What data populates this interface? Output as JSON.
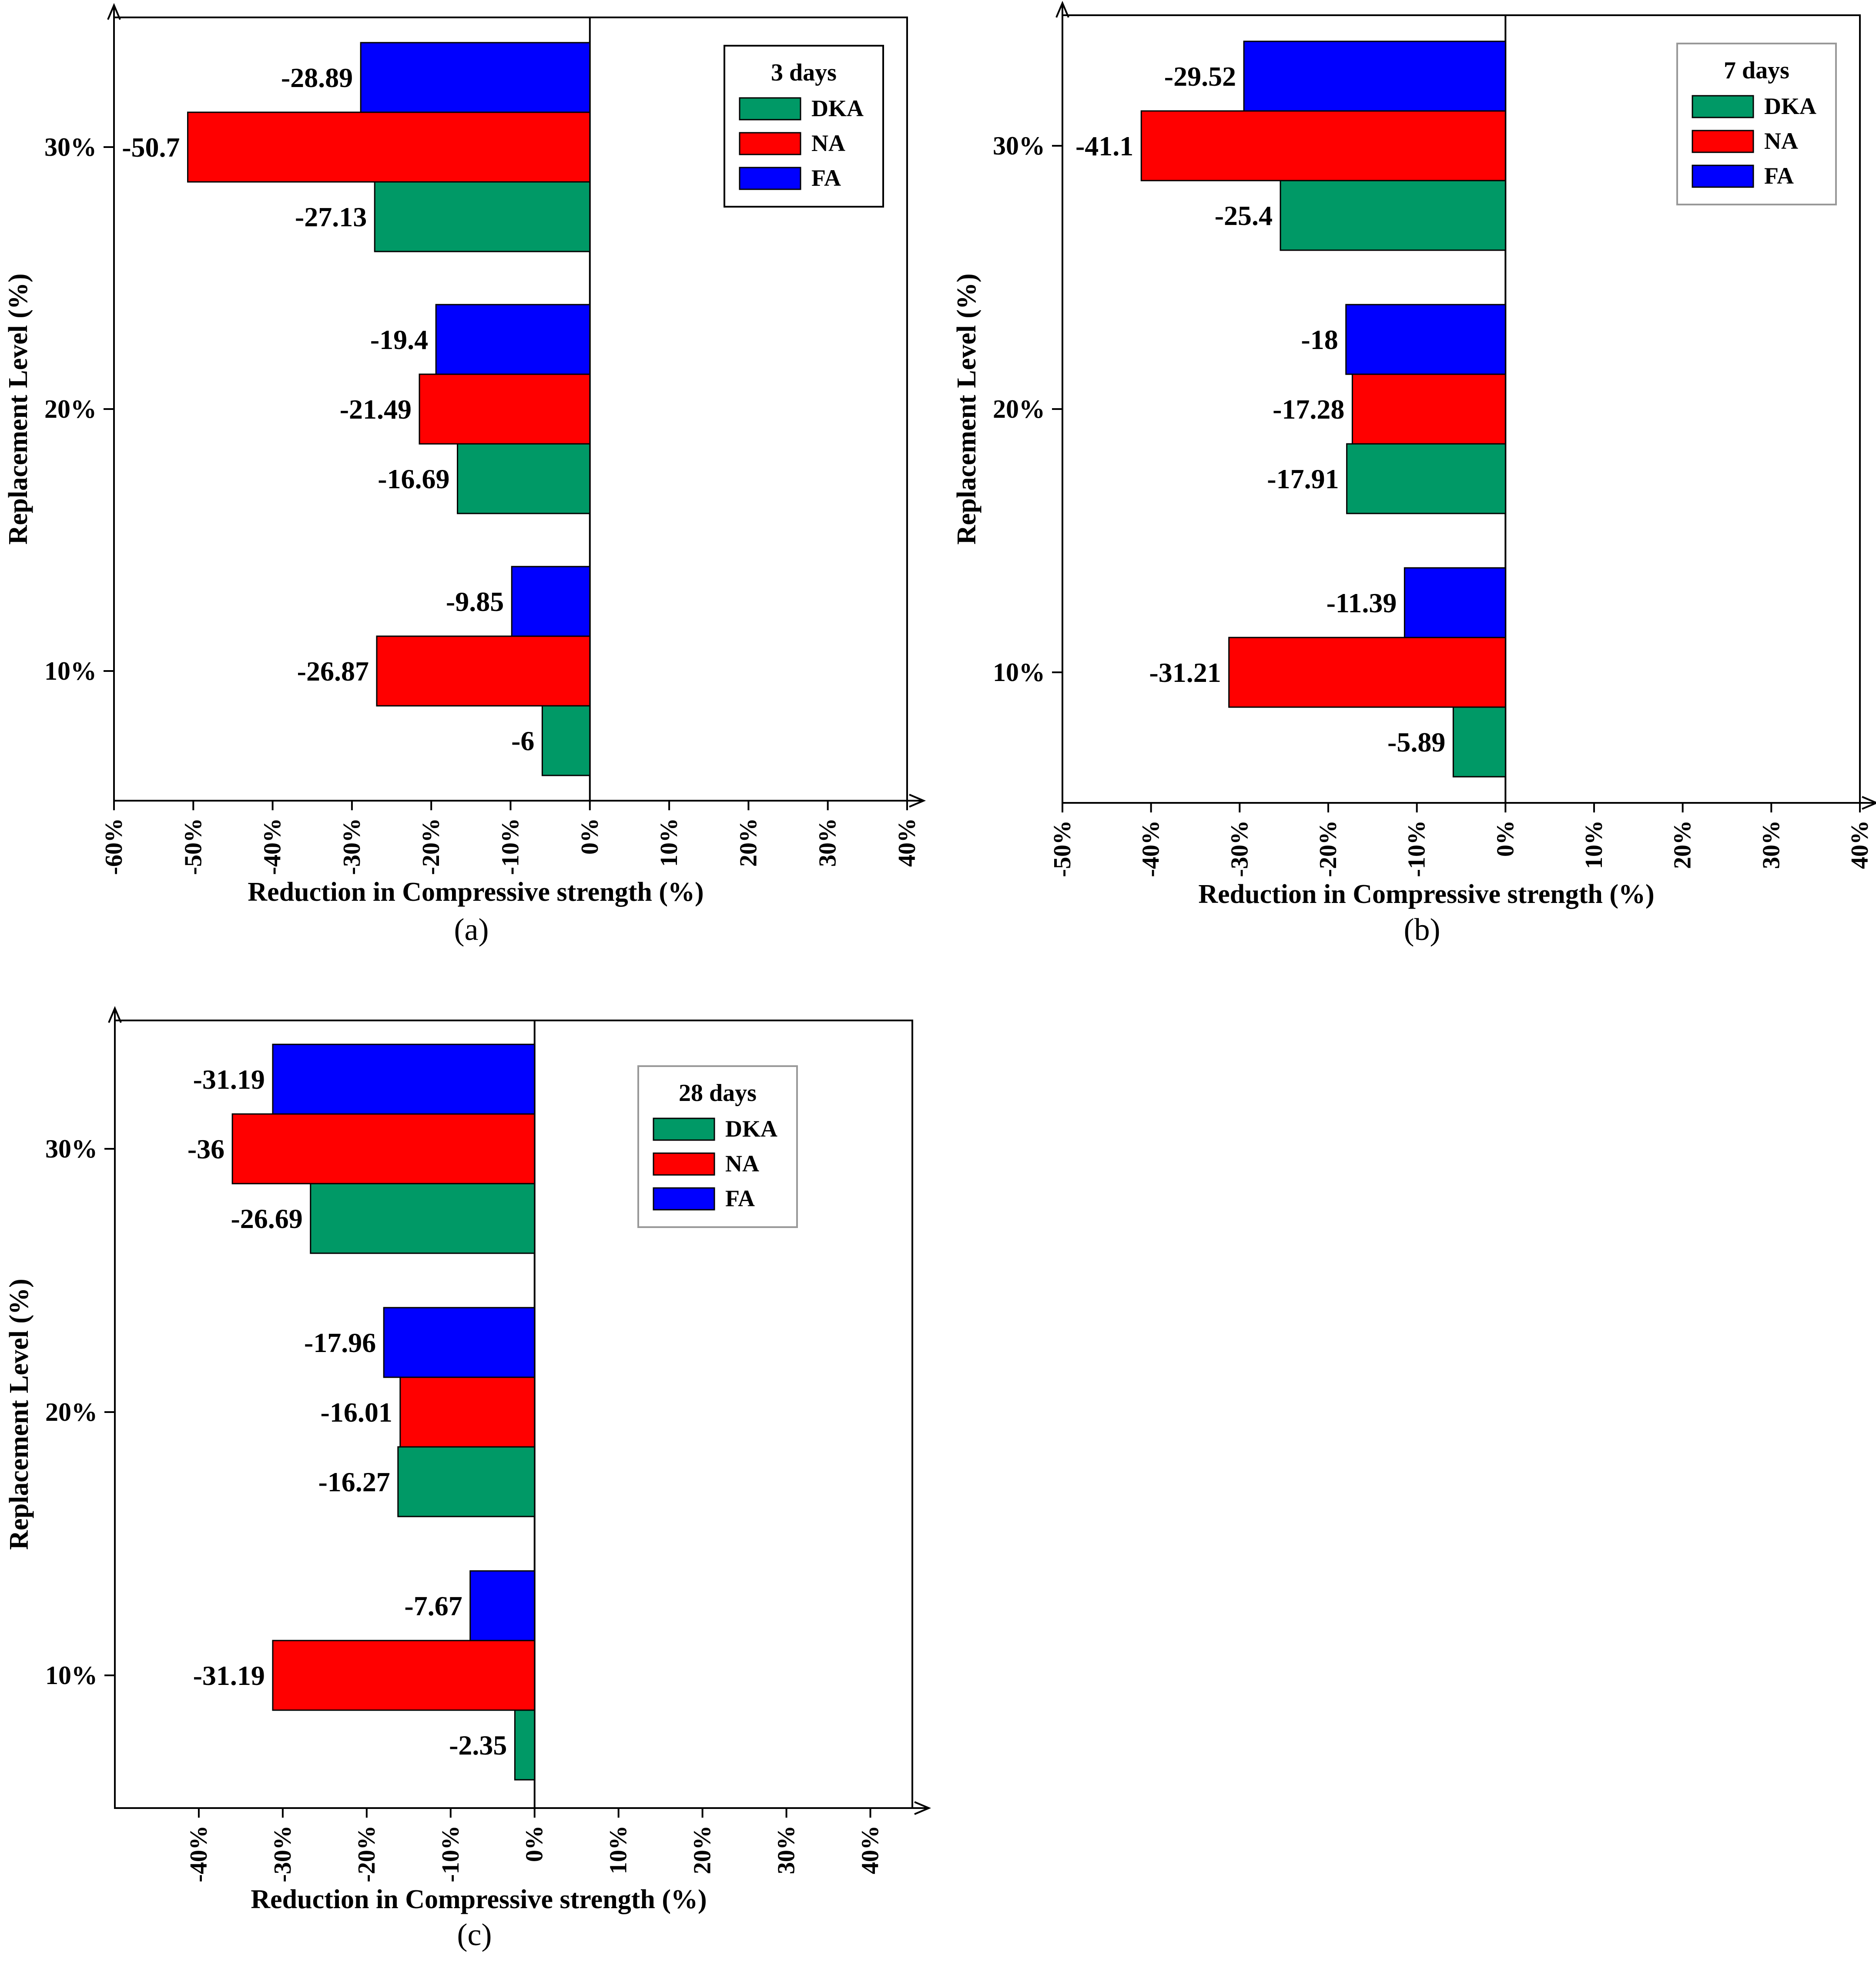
{
  "colors": {
    "DKA": "#009966",
    "NA": "#ff0000",
    "FA": "#0000ff",
    "axis": "#000000",
    "legend_border": "#999999"
  },
  "chart_data": [
    {
      "type": "bar",
      "orientation": "horizontal",
      "panel_label": "(a)",
      "legend_title": "3 days",
      "xlabel": "Reduction in Compressive strength (%)",
      "ylabel": "Replacement Level (%)",
      "xlim": [
        -60,
        40
      ],
      "x_ticks": [
        "-60%",
        "-50%",
        "-40%",
        "-30%",
        "-20%",
        "-10%",
        "0%",
        "10%",
        "20%",
        "30%",
        "40%"
      ],
      "categories": [
        "10%",
        "20%",
        "30%"
      ],
      "series": [
        {
          "name": "DKA",
          "values": [
            -6,
            -16.69,
            -27.13
          ],
          "labels": [
            "-6",
            "-16.69",
            "-27.13"
          ]
        },
        {
          "name": "NA",
          "values": [
            -26.87,
            -21.49,
            -50.7
          ],
          "labels": [
            "-26.87",
            "-21.49",
            "-50.7"
          ]
        },
        {
          "name": "FA",
          "values": [
            -9.85,
            -19.4,
            -28.89
          ],
          "labels": [
            "-9.85",
            "-19.4",
            "-28.89"
          ]
        }
      ],
      "legend_position": "top-right"
    },
    {
      "type": "bar",
      "orientation": "horizontal",
      "panel_label": "(b)",
      "legend_title": "7 days",
      "xlabel": "Reduction in Compressive strength (%)",
      "ylabel": "Replacement Level (%)",
      "xlim": [
        -50,
        40
      ],
      "x_ticks": [
        "-50%",
        "-40%",
        "-30%",
        "-20%",
        "-10%",
        "0%",
        "10%",
        "20%",
        "30%",
        "40%"
      ],
      "categories": [
        "10%",
        "20%",
        "30%"
      ],
      "series": [
        {
          "name": "DKA",
          "values": [
            -5.89,
            -17.91,
            -25.4
          ],
          "labels": [
            "-5.89",
            "-17.91",
            "-25.4"
          ]
        },
        {
          "name": "NA",
          "values": [
            -31.21,
            -17.28,
            -41.1
          ],
          "labels": [
            "-31.21",
            "-17.28",
            "-41.1"
          ]
        },
        {
          "name": "FA",
          "values": [
            -11.39,
            -18,
            -29.52
          ],
          "labels": [
            "-11.39",
            "-18",
            "-29.52"
          ]
        }
      ],
      "legend_position": "top-right"
    },
    {
      "type": "bar",
      "orientation": "horizontal",
      "panel_label": "(c)",
      "legend_title": "28 days",
      "xlabel": "Reduction in Compressive strength (%)",
      "ylabel": "Replacement Level (%)",
      "xlim": [
        -50,
        45
      ],
      "x_ticks": [
        "-40%",
        "-30%",
        "-20%",
        "-10%",
        "0%",
        "10%",
        "20%",
        "30%",
        "40%"
      ],
      "categories": [
        "10%",
        "20%",
        "30%"
      ],
      "series": [
        {
          "name": "DKA",
          "values": [
            -2.35,
            -16.27,
            -26.69
          ],
          "labels": [
            "-2.35",
            "-16.27",
            "-26.69"
          ]
        },
        {
          "name": "NA",
          "values": [
            -31.19,
            -16.01,
            -36
          ],
          "labels": [
            "-31.19",
            "-16.01",
            "-36"
          ]
        },
        {
          "name": "FA",
          "values": [
            -7.67,
            -17.96,
            -31.19
          ],
          "labels": [
            "-7.67",
            "-17.96",
            "-31.19"
          ]
        }
      ],
      "legend_position": "top-right"
    }
  ]
}
